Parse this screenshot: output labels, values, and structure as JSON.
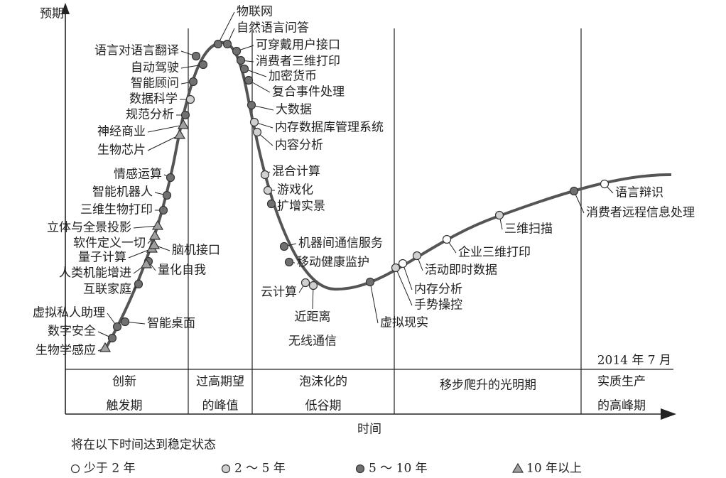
{
  "axes": {
    "y_label": "预期",
    "x_label": "时间"
  },
  "date": "2014 年 7 月",
  "phases": [
    [
      "创新",
      "触发期"
    ],
    [
      "过高期望",
      "的峰值"
    ],
    [
      "泡沫化的",
      "低谷期"
    ],
    [
      "移步爬升的光明期"
    ],
    [
      "实质生产",
      "的高峰期"
    ]
  ],
  "legend": {
    "title": "将在以下时间达到稳定状态",
    "items": [
      {
        "label": "少于 2 年",
        "marker": "open-circle",
        "technologies": [
          [
            "内存分析"
          ],
          [
            "企业三维打印"
          ],
          [
            "语言辩识"
          ]
        ]
      },
      {
        "label": "2 ～ 5 年",
        "marker": "light-circle",
        "technologies": [
          [
            "数据科学"
          ],
          [
            "内存数据库管理系统"
          ],
          [
            "内容分析"
          ],
          [
            "混合计算"
          ],
          [
            "游戏化"
          ],
          [
            "云计算"
          ],
          [
            "近距离",
            "无线通信"
          ],
          [
            "手势操控"
          ],
          [
            "活动即时数据"
          ],
          [
            "三维扫描"
          ]
        ]
      },
      {
        "label": "5 ～ 10 年",
        "marker": "dark-circle",
        "technologies": [
          [
            "语言对语言翻译"
          ],
          [
            "自动驾驶"
          ],
          [
            "智能顾问"
          ],
          [
            "规范分析"
          ],
          [
            "情感运算"
          ],
          [
            "智能机器人"
          ],
          [
            "三维生物打印"
          ],
          [
            "量化自我"
          ],
          [
            "互联家庭"
          ],
          [
            "虚拟私人助理"
          ],
          [
            "智能桌面"
          ],
          [
            "数字安全"
          ],
          [
            "物联网"
          ],
          [
            "自然语言问答"
          ],
          [
            "可穿戴用户接口"
          ],
          [
            "消费者三维打印"
          ],
          [
            "加密货币"
          ],
          [
            "复合事件处理"
          ],
          [
            "大数据"
          ],
          [
            "扩增实景"
          ],
          [
            "机器间通信服务"
          ],
          [
            "移动健康监护"
          ],
          [
            "虚拟现实"
          ],
          [
            "消费者远程信息处理"
          ]
        ]
      },
      {
        "label": "10 年以上",
        "marker": "triangle",
        "technologies": [
          [
            "神经商业"
          ],
          [
            "生物芯片"
          ],
          [
            "立体与全景投影"
          ],
          [
            "软件定义一切"
          ],
          [
            "量子计算"
          ],
          [
            "人类机能增进"
          ],
          [
            "脑机接口"
          ],
          [
            "生物学感应"
          ]
        ]
      }
    ]
  }
}
